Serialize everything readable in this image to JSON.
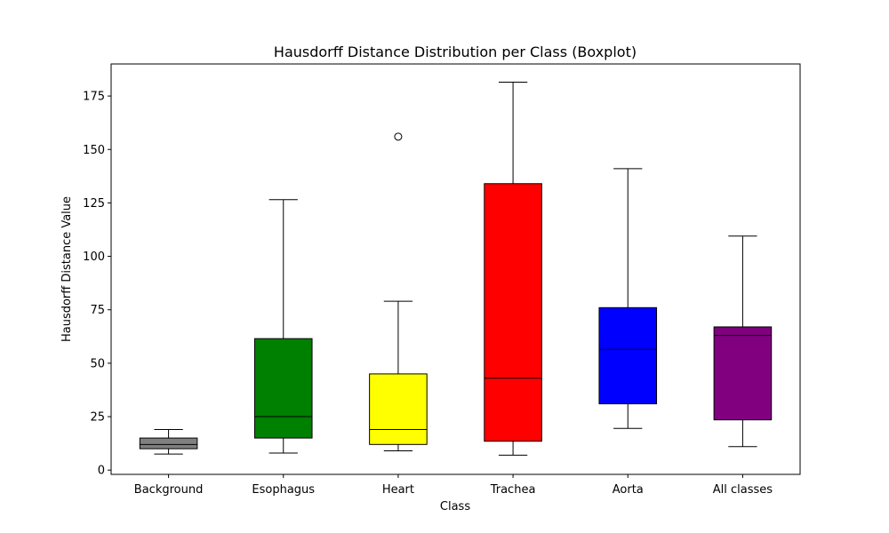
{
  "chart_data": {
    "type": "boxplot",
    "title": "Hausdorff Distance Distribution per Class (Boxplot)",
    "xlabel": "Class",
    "ylabel": "Hausdorff Distance Value",
    "ylim": [
      -2,
      190
    ],
    "yticks": [
      0,
      25,
      50,
      75,
      100,
      125,
      150,
      175
    ],
    "grid": false,
    "categories": [
      "Background",
      "Esophagus",
      "Heart",
      "Trachea",
      "Aorta",
      "All classes"
    ],
    "boxes": [
      {
        "name": "Background",
        "color": "#808080",
        "whisker_low": 7.5,
        "q1": 10,
        "median": 12,
        "q3": 15,
        "whisker_high": 19,
        "outliers": []
      },
      {
        "name": "Esophagus",
        "color": "#008000",
        "whisker_low": 8,
        "q1": 15,
        "median": 25,
        "q3": 61.5,
        "whisker_high": 126.5,
        "outliers": []
      },
      {
        "name": "Heart",
        "color": "#ffff00",
        "whisker_low": 9,
        "q1": 12,
        "median": 19,
        "q3": 45,
        "whisker_high": 79,
        "outliers": [
          156
        ]
      },
      {
        "name": "Trachea",
        "color": "#ff0000",
        "whisker_low": 7,
        "q1": 13.5,
        "median": 43,
        "q3": 134,
        "whisker_high": 181.5,
        "outliers": []
      },
      {
        "name": "Aorta",
        "color": "#0000ff",
        "whisker_low": 19.5,
        "q1": 31,
        "median": 56.5,
        "q3": 76,
        "whisker_high": 141,
        "outliers": []
      },
      {
        "name": "All classes",
        "color": "#800080",
        "whisker_low": 11,
        "q1": 23.5,
        "median": 63,
        "q3": 67,
        "whisker_high": 109.5,
        "outliers": []
      }
    ]
  }
}
